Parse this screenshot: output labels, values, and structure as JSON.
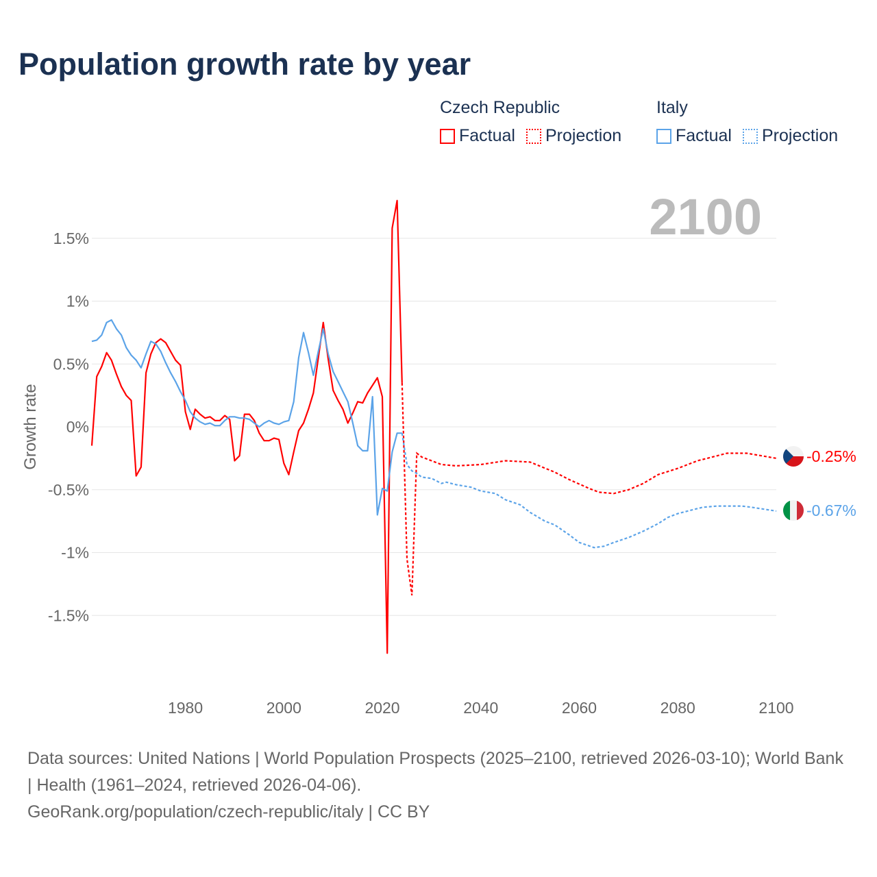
{
  "title": "Population growth rate by year",
  "legend": [
    {
      "name": "Czech Republic",
      "color": "#ff0000",
      "factual_label": "Factual",
      "projection_label": "Projection"
    },
    {
      "name": "Italy",
      "color": "#5ba3e8",
      "factual_label": "Factual",
      "projection_label": "Projection"
    }
  ],
  "year_label": "2100",
  "footer": {
    "sources": "Data sources: United Nations | World Population Prospects (2025–2100, retrieved 2026-03-10); World Bank | Health (1961–2024, retrieved 2026-04-06).",
    "credit": "GeoRank.org/population/czech-republic/italy | CC BY"
  },
  "chart_data": {
    "type": "line",
    "title": "Population growth rate by year",
    "xlabel": "",
    "ylabel": "Growth rate",
    "xlim": [
      1961,
      2100
    ],
    "ylim": [
      -2.0,
      1.9
    ],
    "grid": true,
    "legend_position": "top-right",
    "x_ticks": [
      {
        "value": 1980,
        "label": "1980"
      },
      {
        "value": 2000,
        "label": "2000"
      },
      {
        "value": 2020,
        "label": "2020"
      },
      {
        "value": 2040,
        "label": "2040"
      },
      {
        "value": 2060,
        "label": "2060"
      },
      {
        "value": 2080,
        "label": "2080"
      },
      {
        "value": 2100,
        "label": "2100"
      }
    ],
    "y_ticks": [
      {
        "value": 1.5,
        "label": "1.5%"
      },
      {
        "value": 1,
        "label": "1%"
      },
      {
        "value": 0.5,
        "label": "0.5%"
      },
      {
        "value": 0,
        "label": "0%"
      },
      {
        "value": -0.5,
        "label": "-0.5%"
      },
      {
        "value": -1,
        "label": "-1%"
      },
      {
        "value": -1.5,
        "label": "-1.5%"
      }
    ],
    "series": [
      {
        "name": "Czech Republic",
        "color": "#ff0000",
        "end_label": "-0.25%",
        "factual": {
          "x": [
            1961,
            1962,
            1963,
            1964,
            1965,
            1966,
            1967,
            1968,
            1969,
            1970,
            1971,
            1972,
            1973,
            1974,
            1975,
            1976,
            1977,
            1978,
            1979,
            1980,
            1981,
            1982,
            1983,
            1984,
            1985,
            1986,
            1987,
            1988,
            1989,
            1990,
            1991,
            1992,
            1993,
            1994,
            1995,
            1996,
            1997,
            1998,
            1999,
            2000,
            2001,
            2002,
            2003,
            2004,
            2005,
            2006,
            2007,
            2008,
            2009,
            2010,
            2011,
            2012,
            2013,
            2014,
            2015,
            2016,
            2017,
            2018,
            2019,
            2020,
            2021,
            2022,
            2023,
            2024
          ],
          "y": [
            -0.15,
            0.4,
            0.48,
            0.59,
            0.53,
            0.42,
            0.32,
            0.25,
            0.21,
            -0.39,
            -0.32,
            0.43,
            0.58,
            0.67,
            0.7,
            0.67,
            0.6,
            0.53,
            0.49,
            0.12,
            -0.02,
            0.14,
            0.1,
            0.07,
            0.08,
            0.05,
            0.05,
            0.09,
            0.06,
            -0.27,
            -0.23,
            0.1,
            0.1,
            0.05,
            -0.05,
            -0.11,
            -0.11,
            -0.09,
            -0.1,
            -0.29,
            -0.38,
            -0.2,
            -0.03,
            0.03,
            0.14,
            0.27,
            0.55,
            0.83,
            0.54,
            0.29,
            0.21,
            0.14,
            0.03,
            0.11,
            0.2,
            0.19,
            0.27,
            0.33,
            0.39,
            0.24,
            -1.8,
            1.58,
            1.8,
            0.35
          ]
        },
        "projection": {
          "x": [
            2024,
            2025,
            2026,
            2027,
            2028,
            2030,
            2032,
            2035,
            2040,
            2045,
            2050,
            2055,
            2058,
            2062,
            2064,
            2067,
            2070,
            2073,
            2076,
            2080,
            2084,
            2088,
            2090,
            2094,
            2097,
            2100
          ],
          "y": [
            0.35,
            -1.05,
            -1.34,
            -0.21,
            -0.24,
            -0.27,
            -0.3,
            -0.31,
            -0.3,
            -0.27,
            -0.28,
            -0.36,
            -0.42,
            -0.49,
            -0.52,
            -0.53,
            -0.5,
            -0.45,
            -0.38,
            -0.33,
            -0.27,
            -0.23,
            -0.21,
            -0.21,
            -0.23,
            -0.25
          ]
        }
      },
      {
        "name": "Italy",
        "color": "#5ba3e8",
        "end_label": "-0.67%",
        "factual": {
          "x": [
            1961,
            1962,
            1963,
            1964,
            1965,
            1966,
            1967,
            1968,
            1969,
            1970,
            1971,
            1972,
            1973,
            1974,
            1975,
            1976,
            1977,
            1978,
            1979,
            1980,
            1981,
            1982,
            1983,
            1984,
            1985,
            1986,
            1987,
            1988,
            1989,
            1990,
            1991,
            1992,
            1993,
            1994,
            1995,
            1996,
            1997,
            1998,
            1999,
            2000,
            2001,
            2002,
            2003,
            2004,
            2005,
            2006,
            2007,
            2008,
            2009,
            2010,
            2011,
            2012,
            2013,
            2014,
            2015,
            2016,
            2017,
            2018,
            2019,
            2020,
            2021,
            2022,
            2023,
            2024
          ],
          "y": [
            0.68,
            0.69,
            0.73,
            0.83,
            0.85,
            0.78,
            0.73,
            0.63,
            0.57,
            0.53,
            0.47,
            0.58,
            0.68,
            0.66,
            0.6,
            0.51,
            0.43,
            0.36,
            0.28,
            0.21,
            0.12,
            0.07,
            0.04,
            0.02,
            0.03,
            0.01,
            0.01,
            0.05,
            0.08,
            0.08,
            0.07,
            0.07,
            0.06,
            0.03,
            0.0,
            0.03,
            0.05,
            0.03,
            0.02,
            0.04,
            0.05,
            0.2,
            0.55,
            0.75,
            0.59,
            0.41,
            0.6,
            0.78,
            0.58,
            0.44,
            0.36,
            0.28,
            0.2,
            0.03,
            -0.15,
            -0.19,
            -0.19,
            0.24,
            -0.7,
            -0.49,
            -0.51,
            -0.2,
            -0.05,
            -0.05
          ]
        },
        "projection": {
          "x": [
            2024,
            2025,
            2026,
            2027,
            2028,
            2030,
            2032,
            2033,
            2035,
            2038,
            2040,
            2043,
            2045,
            2048,
            2050,
            2053,
            2055,
            2058,
            2060,
            2063,
            2065,
            2067,
            2070,
            2073,
            2076,
            2078,
            2080,
            2083,
            2085,
            2088,
            2090,
            2093,
            2095,
            2100
          ],
          "y": [
            -0.05,
            -0.3,
            -0.35,
            -0.37,
            -0.4,
            -0.41,
            -0.45,
            -0.44,
            -0.46,
            -0.48,
            -0.51,
            -0.53,
            -0.58,
            -0.62,
            -0.68,
            -0.75,
            -0.78,
            -0.86,
            -0.92,
            -0.96,
            -0.95,
            -0.92,
            -0.88,
            -0.83,
            -0.77,
            -0.72,
            -0.69,
            -0.66,
            -0.64,
            -0.63,
            -0.63,
            -0.63,
            -0.64,
            -0.67
          ]
        }
      }
    ]
  }
}
